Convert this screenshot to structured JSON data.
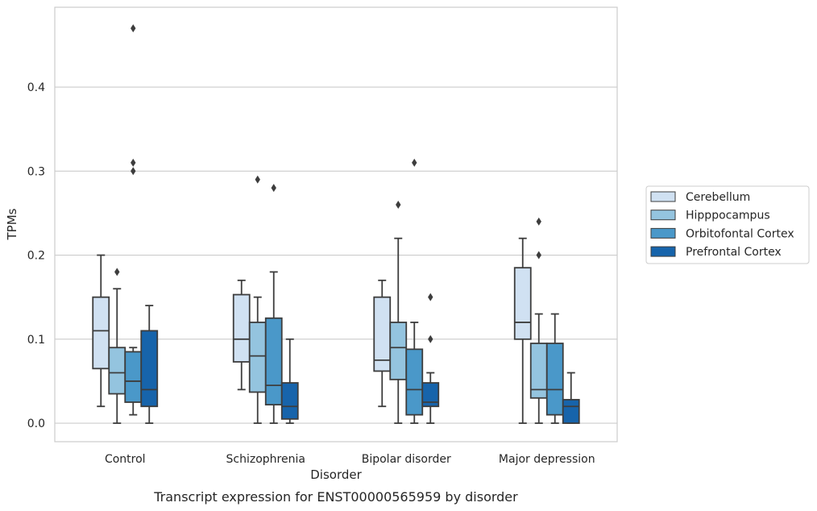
{
  "chart_data": {
    "type": "box",
    "xlabel": "Disorder",
    "ylabel": "TPMs",
    "caption": "Transcript expression for ENST00000565959 by disorder",
    "categories": [
      "Control",
      "Schizophrenia",
      "Bipolar disorder",
      "Major depression"
    ],
    "yticks": [
      "0.0",
      "0.1",
      "0.2",
      "0.3",
      "0.4"
    ],
    "ylim": [
      -0.022,
      0.495
    ],
    "grid": "horizontal",
    "legend_position": "right",
    "series": [
      {
        "name": "Cerebellum",
        "color": "#d0e1f2",
        "boxes": [
          {
            "whislo": 0.02,
            "q1": 0.065,
            "med": 0.11,
            "q3": 0.15,
            "whishi": 0.2,
            "fliers": []
          },
          {
            "whislo": 0.04,
            "q1": 0.073,
            "med": 0.1,
            "q3": 0.153,
            "whishi": 0.17,
            "fliers": []
          },
          {
            "whislo": 0.02,
            "q1": 0.062,
            "med": 0.075,
            "q3": 0.15,
            "whishi": 0.17,
            "fliers": []
          },
          {
            "whislo": 0.0,
            "q1": 0.1,
            "med": 0.12,
            "q3": 0.185,
            "whishi": 0.22,
            "fliers": []
          }
        ]
      },
      {
        "name": "Hipppocampus",
        "color": "#94c4df",
        "boxes": [
          {
            "whislo": 0.0,
            "q1": 0.035,
            "med": 0.06,
            "q3": 0.09,
            "whishi": 0.16,
            "fliers": [
              0.18
            ]
          },
          {
            "whislo": 0.0,
            "q1": 0.037,
            "med": 0.08,
            "q3": 0.12,
            "whishi": 0.15,
            "fliers": [
              0.29
            ]
          },
          {
            "whislo": 0.0,
            "q1": 0.052,
            "med": 0.09,
            "q3": 0.12,
            "whishi": 0.22,
            "fliers": [
              0.26
            ]
          },
          {
            "whislo": 0.0,
            "q1": 0.03,
            "med": 0.04,
            "q3": 0.095,
            "whishi": 0.13,
            "fliers": [
              0.2,
              0.24
            ]
          }
        ]
      },
      {
        "name": "Orbitofontal Cortex",
        "color": "#4a98c9",
        "boxes": [
          {
            "whislo": 0.01,
            "q1": 0.025,
            "med": 0.05,
            "q3": 0.085,
            "whishi": 0.09,
            "fliers": [
              0.3,
              0.31,
              0.47
            ]
          },
          {
            "whislo": 0.0,
            "q1": 0.022,
            "med": 0.045,
            "q3": 0.125,
            "whishi": 0.18,
            "fliers": [
              0.28
            ]
          },
          {
            "whislo": 0.0,
            "q1": 0.01,
            "med": 0.04,
            "q3": 0.088,
            "whishi": 0.12,
            "fliers": [
              0.31
            ]
          },
          {
            "whislo": 0.0,
            "q1": 0.01,
            "med": 0.04,
            "q3": 0.095,
            "whishi": 0.13,
            "fliers": []
          }
        ]
      },
      {
        "name": "Prefrontal Cortex",
        "color": "#1764ab",
        "boxes": [
          {
            "whislo": 0.0,
            "q1": 0.02,
            "med": 0.04,
            "q3": 0.11,
            "whishi": 0.14,
            "fliers": []
          },
          {
            "whislo": 0.0,
            "q1": 0.005,
            "med": 0.02,
            "q3": 0.048,
            "whishi": 0.1,
            "fliers": []
          },
          {
            "whislo": 0.0,
            "q1": 0.02,
            "med": 0.025,
            "q3": 0.048,
            "whishi": 0.06,
            "fliers": [
              0.1,
              0.15
            ]
          },
          {
            "whislo": 0.0,
            "q1": 0.0,
            "med": 0.02,
            "q3": 0.028,
            "whishi": 0.06,
            "fliers": []
          }
        ]
      }
    ]
  }
}
